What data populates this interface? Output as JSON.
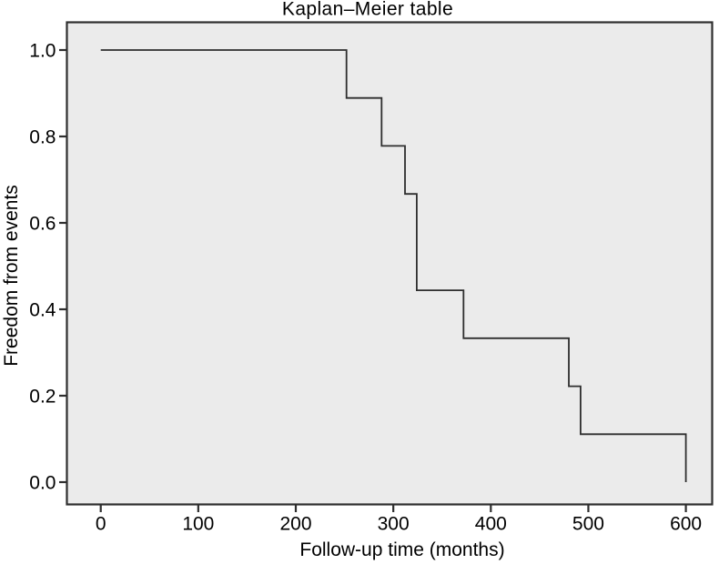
{
  "figure_title": "Kaplan–Meier table",
  "chart_data": {
    "type": "line",
    "style": "kaplan-meier-step",
    "title": "Kaplan–Meier table",
    "xlabel": "Follow-up time (months)",
    "ylabel": "Freedom from events",
    "xlim": [
      0,
      600
    ],
    "ylim": [
      0.0,
      1.0
    ],
    "grid": false,
    "legend": false,
    "x_ticks": [
      {
        "value": 0,
        "label": "0"
      },
      {
        "value": 100,
        "label": "100"
      },
      {
        "value": 200,
        "label": "200"
      },
      {
        "value": 300,
        "label": "300"
      },
      {
        "value": 400,
        "label": "400"
      },
      {
        "value": 500,
        "label": "500"
      },
      {
        "value": 600,
        "label": "600"
      }
    ],
    "y_ticks": [
      {
        "value": 0.0,
        "label": "0.0"
      },
      {
        "value": 0.2,
        "label": "0.2"
      },
      {
        "value": 0.4,
        "label": "0.4"
      },
      {
        "value": 0.6,
        "label": "0.6"
      },
      {
        "value": 0.8,
        "label": "0.8"
      },
      {
        "value": 1.0,
        "label": "1.0"
      }
    ],
    "event_drop_times_months": [
      252,
      288,
      312,
      324,
      372,
      480,
      492,
      600
    ],
    "survival_levels": [
      1.0,
      0.889,
      0.778,
      0.667,
      0.444,
      0.333,
      0.222,
      0.111,
      0.0
    ],
    "series": [
      {
        "name": "Freedom from events",
        "step_points": [
          [
            0,
            1.0
          ],
          [
            252,
            1.0
          ],
          [
            252,
            0.889
          ],
          [
            288,
            0.889
          ],
          [
            288,
            0.778
          ],
          [
            312,
            0.778
          ],
          [
            312,
            0.667
          ],
          [
            324,
            0.667
          ],
          [
            324,
            0.444
          ],
          [
            372,
            0.444
          ],
          [
            372,
            0.333
          ],
          [
            480,
            0.333
          ],
          [
            480,
            0.222
          ],
          [
            492,
            0.222
          ],
          [
            492,
            0.111
          ],
          [
            600,
            0.111
          ],
          [
            600,
            0.0
          ]
        ]
      }
    ]
  },
  "colors": {
    "page_background": "#ffffff",
    "plot_background": "#ebebeb",
    "curve": "#2e2e2e",
    "frame": "#2e2e2e",
    "tick": "#2e2e2e",
    "text": "#000000"
  }
}
